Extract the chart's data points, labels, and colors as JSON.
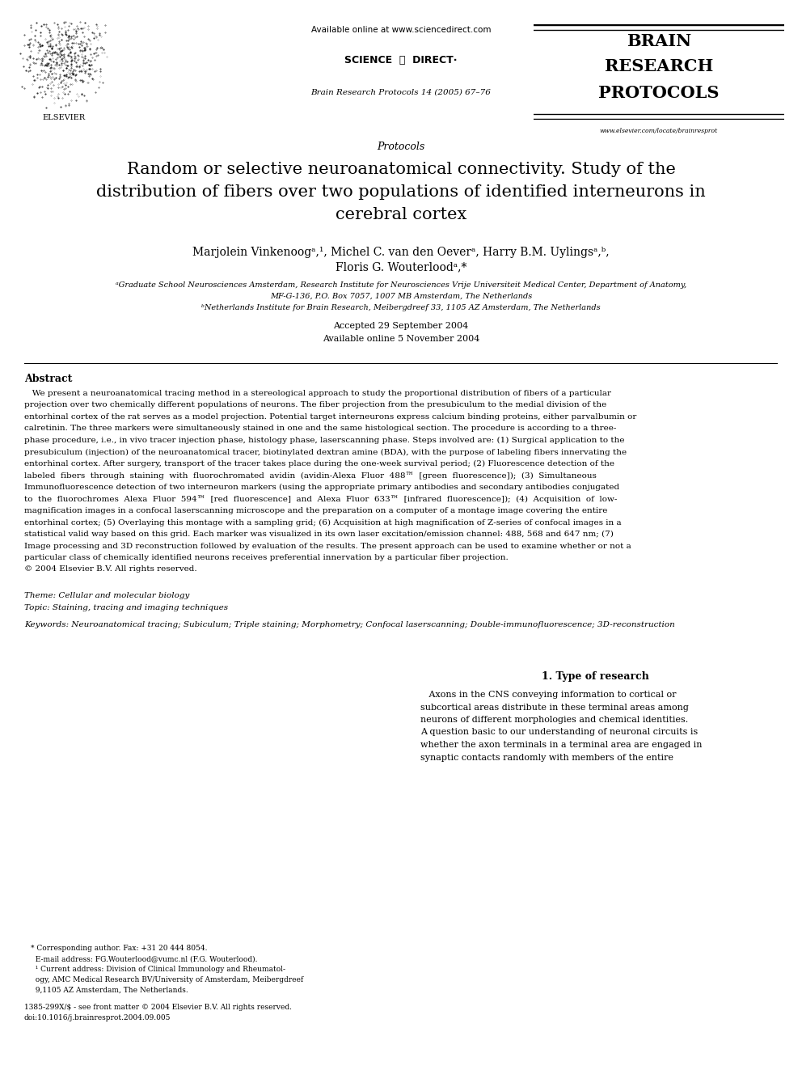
{
  "page_width": 9.92,
  "page_height": 13.23,
  "dpi": 100,
  "bg_color": "#ffffff",
  "header_available": "Available online at www.sciencedirect.com",
  "header_scidir": "SCIENCE  ⓐ  DIRECT·",
  "header_journal": "Brain Research Protocols 14 (2005) 67–76",
  "brp1": "BRAIN",
  "brp2": "RESEARCH",
  "brp3": "PROTOCOLS",
  "brp_url": "www.elsevier.com/locate/brainresprot",
  "protocols_label": "Protocols",
  "title_line1": "Random or selective neuroanatomical connectivity. Study of the",
  "title_line2": "distribution of fibers over two populations of identified interneurons in",
  "title_line3": "cerebral cortex",
  "author_line1": "Marjolein Vinkenoogᵃ,¹, Michel C. van den Oeverᵃ, Harry B.M. Uylingsᵃ,ᵇ,",
  "author_line2": "Floris G. Wouterloodᵃ,*",
  "aff_a1": "ᵃGraduate School Neurosciences Amsterdam, Research Institute for Neurosciences Vrije Universiteit Medical Center, Department of Anatomy,",
  "aff_a2": "MF-G-136, P.O. Box 7057, 1007 MB Amsterdam, The Netherlands",
  "aff_b": "ᵇNetherlands Institute for Brain Research, Meibergdreef 33, 1105 AZ Amsterdam, The Netherlands",
  "date1": "Accepted 29 September 2004",
  "date2": "Available online 5 November 2004",
  "abstract_head": "Abstract",
  "abstract_indent": "   We present a neuroanatomical tracing method in a stereological approach to study the proportional distribution of fibers of a particular",
  "abs_lines": [
    "   We present a neuroanatomical tracing method in a stereological approach to study the proportional distribution of fibers of a particular",
    "projection over two chemically different populations of neurons. The fiber projection from the presubiculum to the medial division of the",
    "entorhinal cortex of the rat serves as a model projection. Potential target interneurons express calcium binding proteins, either parvalbumin or",
    "calretinin. The three markers were simultaneously stained in one and the same histological section. The procedure is according to a three-",
    "phase procedure, i.e., in vivo tracer injection phase, histology phase, laserscanning phase. Steps involved are: (1) Surgical application to the",
    "presubiculum (injection) of the neuroanatomical tracer, biotinylated dextran amine (BDA), with the purpose of labeling fibers innervating the",
    "entorhinal cortex. After surgery, transport of the tracer takes place during the one-week survival period; (2) Fluorescence detection of the",
    "labeled  fibers  through  staining  with  fluorochromated  avidin  (avidin-Alexa  Fluor  488™  [green  fluorescence]);  (3)  Simultaneous",
    "Immunofluorescence detection of two interneuron markers (using the appropriate primary antibodies and secondary antibodies conjugated",
    "to  the  fluorochromes  Alexa  Fluor  594™  [red  fluorescence]  and  Alexa  Fluor  633™  [infrared  fluorescence]);  (4)  Acquisition  of  low-",
    "magnification images in a confocal laserscanning microscope and the preparation on a computer of a montage image covering the entire",
    "entorhinal cortex; (5) Overlaying this montage with a sampling grid; (6) Acquisition at high magnification of Z-series of confocal images in a",
    "statistical valid way based on this grid. Each marker was visualized in its own laser excitation/emission channel: 488, 568 and 647 nm; (7)",
    "Image processing and 3D reconstruction followed by evaluation of the results. The present approach can be used to examine whether or not a",
    "particular class of chemically identified neurons receives preferential innervation by a particular fiber projection.",
    "© 2004 Elsevier B.V. All rights reserved."
  ],
  "theme1": "Theme: Cellular and molecular biology",
  "theme2": "Topic: Staining, tracing and imaging techniques",
  "keywords": "Keywords: Neuroanatomical tracing; Subiculum; Triple staining; Morphometry; Confocal laserscanning; Double-immunofluorescence; 3D-reconstruction",
  "sec1_title": "1. Type of research",
  "sec1_lines": [
    "   Axons in the CNS conveying information to cortical or",
    "subcortical areas distribute in these terminal areas among",
    "neurons of different morphologies and chemical identities.",
    "A question basic to our understanding of neuronal circuits is",
    "whether the axon terminals in a terminal area are engaged in",
    "synaptic contacts randomly with members of the entire"
  ],
  "foot1": "* Corresponding author. Fax: +31 20 444 8054.",
  "foot2": "  E-mail address: FG.Wouterlood@vumc.nl (F.G. Wouterlood).",
  "foot3": "  ¹ Current address: Division of Clinical Immunology and Rheumatol-",
  "foot4": "  ogy, AMC Medical Research BV/University of Amsterdam, Meibergdreef",
  "foot5": "  9,1105 AZ Amsterdam, The Netherlands.",
  "copy1": "1385-299X/$ - see front matter © 2004 Elsevier B.V. All rights reserved.",
  "copy2": "doi:10.1016/j.brainresprot.2004.09.005"
}
